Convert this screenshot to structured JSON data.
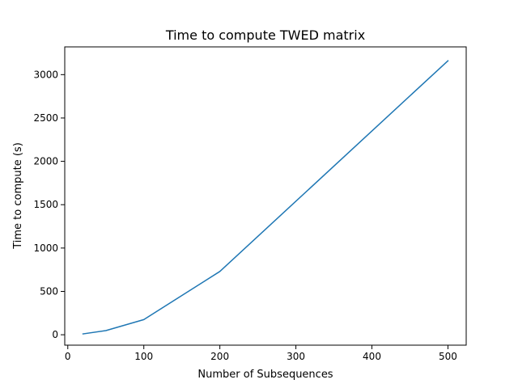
{
  "chart_data": {
    "type": "line",
    "title": "Time to compute TWED matrix",
    "xlabel": "Number of Subsequences",
    "ylabel": "Time to compute (s)",
    "xlim": [
      -4,
      524
    ],
    "ylim": [
      -120,
      3320
    ],
    "x_ticks": [
      0,
      100,
      200,
      300,
      400,
      500
    ],
    "y_ticks": [
      0,
      500,
      1000,
      1500,
      2000,
      2500,
      3000
    ],
    "grid": false,
    "legend": "none",
    "series": [
      {
        "color": "#1f77b4",
        "x": [
          20,
          50,
          100,
          200,
          500
        ],
        "y": [
          10,
          48,
          175,
          730,
          3160
        ]
      }
    ]
  }
}
